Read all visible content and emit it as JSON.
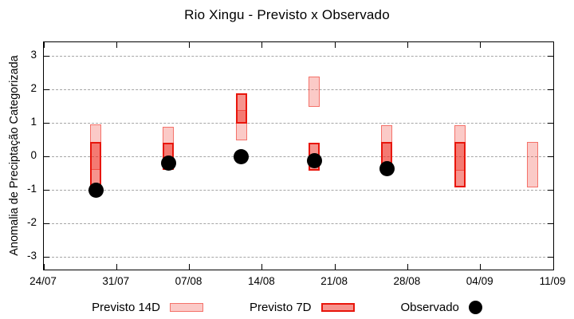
{
  "title": "Rio Xingu - Previsto x Observado",
  "y_axis": {
    "label": "Anomalia de Preciptação Categorizada",
    "tick_values": [
      3,
      2,
      1,
      0,
      -1,
      -2,
      -3
    ],
    "tick_labels": [
      "3",
      "2",
      "1",
      "0",
      "-1",
      "-2",
      "-3"
    ]
  },
  "x_axis": {
    "tick_labels": [
      "24/07",
      "31/07",
      "07/08",
      "14/08",
      "21/08",
      "28/08",
      "04/09",
      "11/09"
    ],
    "tick_day_offsets": [
      0,
      7,
      14,
      21,
      28,
      35,
      42,
      49
    ]
  },
  "legend": {
    "items": [
      {
        "label": "Previsto 14D",
        "type": "box-light"
      },
      {
        "label": "Previsto 7D",
        "type": "box-dark"
      },
      {
        "label": "Observado",
        "type": "dot"
      }
    ]
  },
  "colors": {
    "base_red": "#ee2a1e",
    "border_7d": "#e8160c",
    "grid": "#a6a6a6",
    "observed": "#000000"
  },
  "chart_data": {
    "type": "rangebar+scatter",
    "title": "Rio Xingu - Previsto x Observado",
    "ylabel": "Anomalia de Preciptação Categorizada",
    "ylim": [
      -3.4,
      3.4
    ],
    "grid": "dashed-horizontal",
    "x_start_label": "24/07",
    "x_span_days": 49,
    "series_names": [
      "Previsto 14D",
      "Previsto 7D",
      "Observado"
    ],
    "groups": [
      {
        "date": "29/07",
        "day_offset": 5,
        "previsto_14d": [
          0.95,
          -0.4
        ],
        "previsto_7d": [
          0.44,
          -0.88
        ],
        "observado": -1.0
      },
      {
        "date": "05/08",
        "day_offset": 12,
        "previsto_14d": [
          0.87,
          -0.41
        ],
        "previsto_7d": [
          0.41,
          -0.41
        ],
        "observado": -0.2
      },
      {
        "date": "12/08",
        "day_offset": 19,
        "previsto_14d": [
          1.39,
          0.48
        ],
        "previsto_7d": [
          1.89,
          0.98
        ],
        "observado": 0.0
      },
      {
        "date": "19/08",
        "day_offset": 26,
        "previsto_14d": [
          2.38,
          1.48
        ],
        "previsto_7d": [
          0.41,
          -0.44
        ],
        "observado": -0.14
      },
      {
        "date": "26/08",
        "day_offset": 33,
        "previsto_14d": [
          0.93,
          -0.43
        ],
        "previsto_7d": [
          0.42,
          -0.43
        ],
        "observado": -0.36
      },
      {
        "date": "02/09",
        "day_offset": 40,
        "previsto_14d": [
          0.93,
          -0.44
        ],
        "previsto_7d": [
          0.42,
          -0.93
        ],
        "observado": null
      },
      {
        "date": "09/09",
        "day_offset": 47,
        "previsto_14d": [
          0.42,
          -0.93
        ],
        "previsto_7d": null,
        "observado": null
      }
    ]
  }
}
